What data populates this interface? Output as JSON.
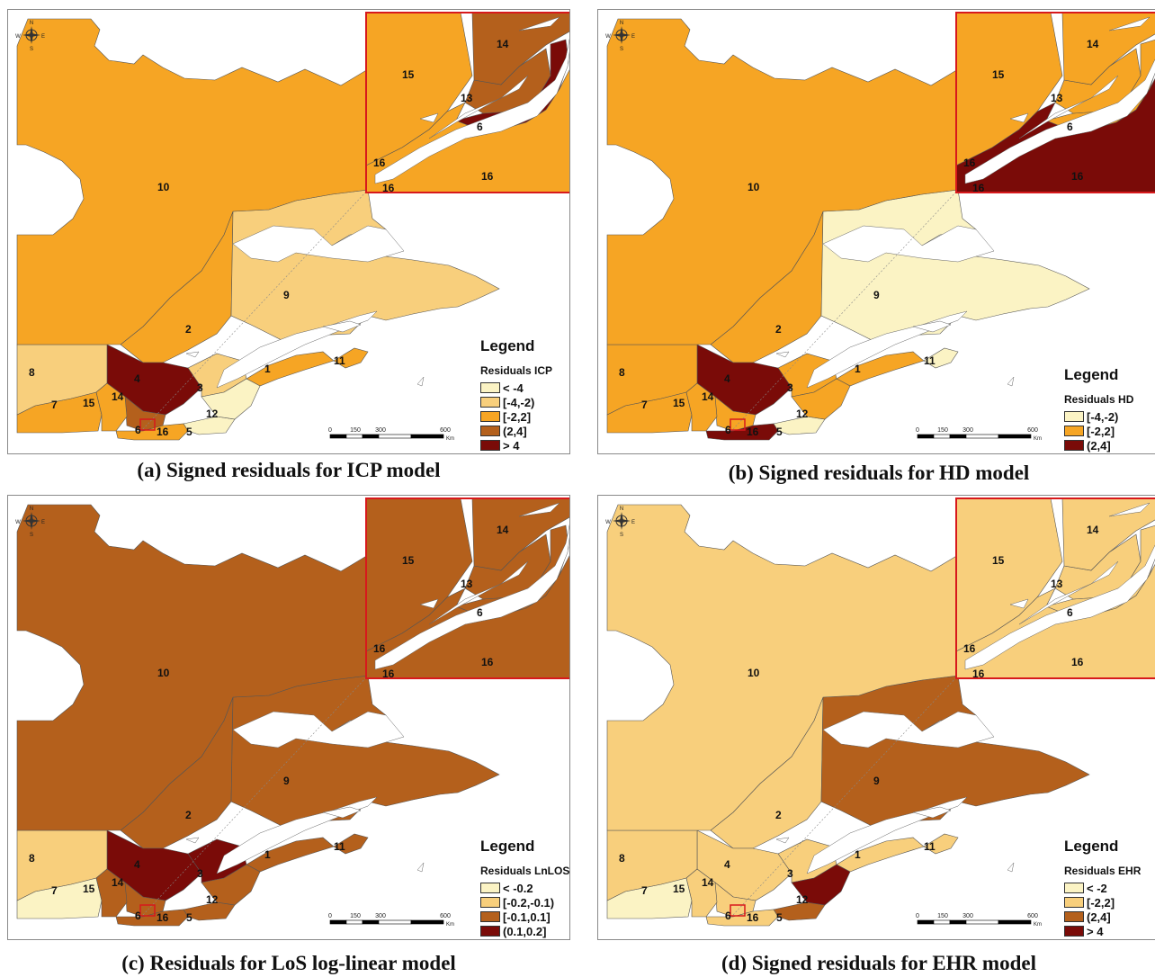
{
  "colors": {
    "very_light": "#fbf3c4",
    "light": "#f8cf7c",
    "mid": "#f6a524",
    "dark": "#b4601c",
    "very_dark": "#7a0b08",
    "inset_border": "#d7191c",
    "water": "#ffffff"
  },
  "panels": [
    {
      "caption": "(a) Signed residuals for ICP model",
      "legend_title": "Legend",
      "legend_subtitle": "Residuals ICP",
      "legend_items": [
        {
          "label": "< -4",
          "color": "#fbf3c4"
        },
        {
          "label": "[-4,-2)",
          "color": "#f8cf7c"
        },
        {
          "label": "[-2,2]",
          "color": "#f6a524"
        },
        {
          "label": "(2,4]",
          "color": "#b4601c"
        },
        {
          "label": "> 4",
          "color": "#7a0b08"
        }
      ],
      "region_colors": {
        "10": "#f6a524",
        "2": "#f6a524",
        "9": "#f8cf7c",
        "8": "#f8cf7c",
        "4": "#7a0b08",
        "3": "#f8cf7c",
        "1": "#f6a524",
        "11": "#f6a524",
        "12": "#fbf3c4",
        "5": "#fbf3c4",
        "7": "#f6a524",
        "15": "#f6a524",
        "14": "#b4601c",
        "16": "#f6a524"
      },
      "inset_colors": {
        "15": "#f6a524",
        "14": "#b4601c",
        "13": "#b4601c",
        "6": "#7a0b08",
        "16": "#f6a524"
      },
      "scale": [
        "0",
        "150",
        "300",
        "600"
      ]
    },
    {
      "caption": "(b) Signed residuals for HD model",
      "legend_title": "Legend",
      "legend_subtitle": "Residuals HD",
      "legend_items": [
        {
          "label": "[-4,-2)",
          "color": "#fbf3c4"
        },
        {
          "label": "[-2,2]",
          "color": "#f6a524"
        },
        {
          "label": "(2,4]",
          "color": "#7a0b08"
        }
      ],
      "region_colors": {
        "10": "#f6a524",
        "2": "#f6a524",
        "9": "#fbf3c4",
        "8": "#f6a524",
        "4": "#7a0b08",
        "3": "#f6a524",
        "1": "#f6a524",
        "11": "#fbf3c4",
        "12": "#f6a524",
        "5": "#fbf3c4",
        "7": "#f6a524",
        "15": "#f6a524",
        "14": "#f6a524",
        "16": "#7a0b08"
      },
      "inset_colors": {
        "15": "#f6a524",
        "14": "#f6a524",
        "13": "#f6a524",
        "6": "#f6a524",
        "16": "#7a0b08"
      },
      "scale": [
        "0",
        "150",
        "300",
        "600"
      ]
    },
    {
      "caption": "(c) Residuals for LoS log-linear model",
      "legend_title": "Legend",
      "legend_subtitle": "Residuals LnLOS",
      "legend_items": [
        {
          "label": "< -0.2",
          "color": "#fbf3c4"
        },
        {
          "label": "[-0.2,-0.1)",
          "color": "#f8cf7c"
        },
        {
          "label": "[-0.1,0.1]",
          "color": "#b4601c"
        },
        {
          "label": "(0.1,0.2]",
          "color": "#7a0b08"
        }
      ],
      "region_colors": {
        "10": "#b4601c",
        "2": "#b4601c",
        "9": "#b4601c",
        "8": "#f8cf7c",
        "4": "#7a0b08",
        "3": "#7a0b08",
        "1": "#b4601c",
        "11": "#b4601c",
        "12": "#b4601c",
        "5": "#b4601c",
        "7": "#fbf3c4",
        "15": "#b4601c",
        "14": "#b4601c",
        "16": "#b4601c"
      },
      "inset_colors": {
        "15": "#b4601c",
        "14": "#b4601c",
        "13": "#b4601c",
        "6": "#b4601c",
        "16": "#b4601c"
      },
      "scale": [
        "0",
        "150",
        "300",
        "600"
      ]
    },
    {
      "caption": "(d) Signed residuals for EHR model",
      "legend_title": "Legend",
      "legend_subtitle": "Residuals EHR",
      "legend_items": [
        {
          "label": "< -2",
          "color": "#fbf3c4"
        },
        {
          "label": "[-2,2]",
          "color": "#f8cf7c"
        },
        {
          "label": "(2,4]",
          "color": "#b4601c"
        },
        {
          "label": "> 4",
          "color": "#7a0b08"
        }
      ],
      "region_colors": {
        "10": "#f8cf7c",
        "2": "#f8cf7c",
        "9": "#b4601c",
        "8": "#f8cf7c",
        "4": "#f8cf7c",
        "3": "#f8cf7c",
        "1": "#f8cf7c",
        "11": "#f8cf7c",
        "12": "#7a0b08",
        "5": "#b4601c",
        "7": "#fbf3c4",
        "15": "#f8cf7c",
        "14": "#f8cf7c",
        "16": "#f8cf7c"
      },
      "inset_colors": {
        "15": "#f8cf7c",
        "14": "#f8cf7c",
        "13": "#f8cf7c",
        "6": "#f8cf7c",
        "16": "#f8cf7c"
      },
      "scale": [
        "0",
        "150",
        "300",
        "600"
      ]
    }
  ],
  "region_labels": [
    "10",
    "2",
    "9",
    "8",
    "4",
    "3",
    "1",
    "11",
    "12",
    "5",
    "7",
    "15",
    "14",
    "16",
    "6"
  ],
  "inset_labels": [
    "15",
    "14",
    "13",
    "6",
    "16",
    "16",
    "16"
  ],
  "compass": {
    "n": "N",
    "s": "S",
    "e": "E",
    "w": "W"
  },
  "scale_unit": "Km"
}
